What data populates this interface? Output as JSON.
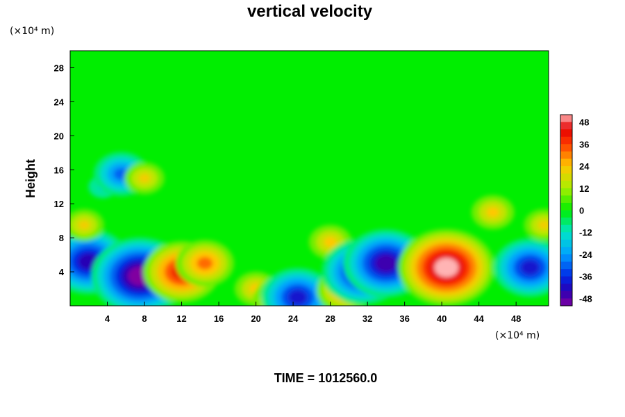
{
  "chart_data": {
    "type": "heatmap",
    "title": "vertical velocity",
    "ylabel": "Height",
    "x_unit_label": "(×10⁴ m)",
    "y_unit_label": "(×10⁴ m)",
    "footer": "TIME = 1012560.0",
    "xlim": [
      0,
      51.5
    ],
    "ylim": [
      0,
      30
    ],
    "x_ticks": [
      4,
      8,
      12,
      16,
      20,
      24,
      28,
      32,
      36,
      40,
      44,
      48
    ],
    "y_ticks": [
      4,
      8,
      12,
      16,
      20,
      24,
      28
    ],
    "colorbar": {
      "range": [
        -52,
        52
      ],
      "ticks": [
        48,
        36,
        24,
        12,
        0,
        -12,
        -24,
        -36,
        -48
      ]
    },
    "features": [
      {
        "x": 2.0,
        "y": 5.2,
        "value": -44
      },
      {
        "x": 1.5,
        "y": 9.5,
        "value": 22
      },
      {
        "x": 3.5,
        "y": 14.0,
        "value": -18
      },
      {
        "x": 5.5,
        "y": 15.5,
        "value": -30
      },
      {
        "x": 8.0,
        "y": 15.0,
        "value": 22
      },
      {
        "x": 7.5,
        "y": 3.5,
        "value": -52
      },
      {
        "x": 12.0,
        "y": 4.0,
        "value": 42
      },
      {
        "x": 14.5,
        "y": 5.0,
        "value": 32
      },
      {
        "x": 20.0,
        "y": 2.0,
        "value": 24
      },
      {
        "x": 22.8,
        "y": 0.7,
        "value": 32
      },
      {
        "x": 24.5,
        "y": 1.0,
        "value": -40
      },
      {
        "x": 28.0,
        "y": 7.5,
        "value": 24
      },
      {
        "x": 29.5,
        "y": 1.8,
        "value": 30
      },
      {
        "x": 31.5,
        "y": 4.0,
        "value": -44
      },
      {
        "x": 34.0,
        "y": 5.0,
        "value": -46
      },
      {
        "x": 40.5,
        "y": 4.5,
        "value": 52
      },
      {
        "x": 45.5,
        "y": 11.0,
        "value": 24
      },
      {
        "x": 49.5,
        "y": 4.5,
        "value": -40
      },
      {
        "x": 51.0,
        "y": 9.5,
        "value": 22
      }
    ]
  }
}
